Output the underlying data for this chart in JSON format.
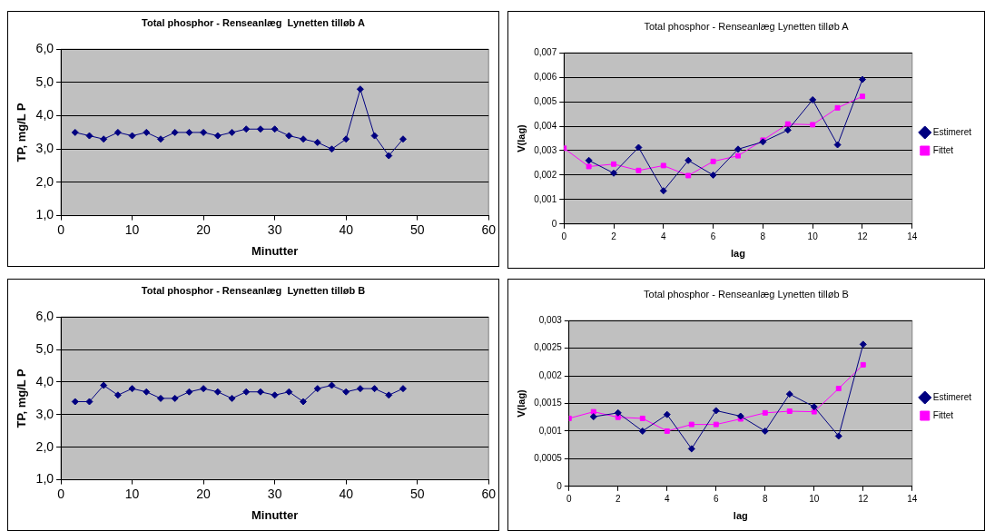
{
  "chart_data": [
    {
      "type": "line",
      "title": "Total phosphor - Renseanlæg  Lynetten tilløb A",
      "xlabel": "Minutter",
      "ylabel": "TP, mg/L P",
      "xlim": [
        0,
        60
      ],
      "xticks": [
        0,
        10,
        20,
        30,
        40,
        50,
        60
      ],
      "ylim": [
        1,
        6
      ],
      "yticks": [
        {
          "value": 1,
          "label": "1,0"
        },
        {
          "value": 2,
          "label": "2,0"
        },
        {
          "value": 3,
          "label": "3,0"
        },
        {
          "value": 4,
          "label": "4,0"
        },
        {
          "value": 5,
          "label": "5,0"
        },
        {
          "value": 6,
          "label": "6,0"
        }
      ],
      "grid": "y",
      "legend": false,
      "marker": "diamond",
      "x": [
        2,
        4,
        6,
        8,
        10,
        12,
        14,
        16,
        18,
        20,
        22,
        24,
        26,
        28,
        30,
        32,
        34,
        36,
        38,
        40,
        42,
        44,
        46,
        48
      ],
      "series": [
        {
          "color": "#000080",
          "values": [
            3.5,
            3.4,
            3.3,
            3.5,
            3.4,
            3.5,
            3.3,
            3.5,
            3.5,
            3.5,
            3.4,
            3.5,
            3.6,
            3.6,
            3.6,
            3.4,
            3.3,
            3.2,
            3.0,
            3.3,
            4.8,
            3.4,
            2.8,
            3.3
          ]
        }
      ]
    },
    {
      "type": "line",
      "title": "Total phosphor - Renseanlæg Lynetten tilløb A",
      "xlabel": "lag",
      "ylabel": "V(lag)",
      "xlim": [
        0,
        14
      ],
      "xticks": [
        0,
        2,
        4,
        6,
        8,
        10,
        12,
        14
      ],
      "ylim": [
        0,
        0.007
      ],
      "yticks": [
        0,
        {
          "value": 0.001,
          "label": "0,001"
        },
        {
          "value": 0.002,
          "label": "0,002"
        },
        {
          "value": 0.003,
          "label": "0,003"
        },
        {
          "value": 0.004,
          "label": "0,004"
        },
        {
          "value": 0.005,
          "label": "0,005"
        },
        {
          "value": 0.006,
          "label": "0,006"
        },
        {
          "value": 0.007,
          "label": "0,007"
        }
      ],
      "grid": "y",
      "legend": "right",
      "series": [
        {
          "name": "Estimeret",
          "color": "#000080",
          "marker": "diamond",
          "x": [
            1,
            2,
            3,
            4,
            5,
            6,
            7,
            8,
            9,
            10,
            11,
            12
          ],
          "values": [
            0.0026,
            0.00208,
            0.00313,
            0.00136,
            0.0026,
            0.002,
            0.00306,
            0.00336,
            0.00384,
            0.00508,
            0.00324,
            0.00591
          ]
        },
        {
          "name": "Fittet",
          "color": "#ff00ff",
          "marker": "square",
          "x": [
            0,
            1,
            2,
            3,
            4,
            5,
            6,
            7,
            8,
            9,
            10,
            11,
            12
          ],
          "values": [
            0.0031,
            0.00235,
            0.00245,
            0.00219,
            0.00239,
            0.00198,
            0.00256,
            0.00279,
            0.00343,
            0.00409,
            0.00406,
            0.00475,
            0.00522
          ]
        }
      ]
    },
    {
      "type": "line",
      "title": "Total phosphor - Renseanlæg  Lynetten tilløb B",
      "xlabel": "Minutter",
      "ylabel": "TP, mg/L P",
      "xlim": [
        0,
        60
      ],
      "xticks": [
        0,
        10,
        20,
        30,
        40,
        50,
        60
      ],
      "ylim": [
        1,
        6
      ],
      "yticks": [
        {
          "value": 1,
          "label": "1,0"
        },
        {
          "value": 2,
          "label": "2,0"
        },
        {
          "value": 3,
          "label": "3,0"
        },
        {
          "value": 4,
          "label": "4,0"
        },
        {
          "value": 5,
          "label": "5,0"
        },
        {
          "value": 6,
          "label": "6,0"
        }
      ],
      "grid": "y",
      "legend": false,
      "marker": "diamond",
      "x": [
        2,
        4,
        6,
        8,
        10,
        12,
        14,
        16,
        18,
        20,
        22,
        24,
        26,
        28,
        30,
        32,
        34,
        36,
        38,
        40,
        42,
        44,
        46,
        48
      ],
      "series": [
        {
          "color": "#000080",
          "values": [
            3.4,
            3.4,
            3.9,
            3.6,
            3.8,
            3.7,
            3.5,
            3.5,
            3.7,
            3.8,
            3.7,
            3.5,
            3.7,
            3.7,
            3.6,
            3.7,
            3.4,
            3.8,
            3.9,
            3.7,
            3.8,
            3.8,
            3.6,
            3.8
          ]
        }
      ]
    },
    {
      "type": "line",
      "title": "Total phosphor - Renseanlæg Lynetten tilløb B",
      "xlabel": "lag",
      "ylabel": "V(lag)",
      "xlim": [
        0,
        14
      ],
      "xticks": [
        0,
        2,
        4,
        6,
        8,
        10,
        12,
        14
      ],
      "ylim": [
        0,
        0.003
      ],
      "yticks": [
        0,
        {
          "value": 0.0005,
          "label": "0,0005"
        },
        {
          "value": 0.001,
          "label": "0,001"
        },
        {
          "value": 0.0015,
          "label": "0,0015"
        },
        {
          "value": 0.002,
          "label": "0,002"
        },
        {
          "value": 0.0025,
          "label": "0,0025"
        },
        {
          "value": 0.003,
          "label": "0,003"
        }
      ],
      "grid": "y",
      "legend": "right",
      "series": [
        {
          "name": "Estimeret",
          "color": "#000080",
          "marker": "diamond",
          "x": [
            1,
            2,
            3,
            4,
            5,
            6,
            7,
            8,
            9,
            10,
            11,
            12
          ],
          "values": [
            0.00126,
            0.00133,
            0.001,
            0.0013,
            0.00068,
            0.00137,
            0.00127,
            0.001,
            0.00167,
            0.00144,
            0.00091,
            0.00257
          ]
        },
        {
          "name": "Fittet",
          "color": "#ff00ff",
          "marker": "square",
          "x": [
            0,
            1,
            2,
            3,
            4,
            5,
            6,
            7,
            8,
            9,
            10,
            11,
            12
          ],
          "values": [
            0.00123,
            0.00135,
            0.00125,
            0.00123,
            0.001,
            0.00112,
            0.00112,
            0.00122,
            0.00133,
            0.00136,
            0.00135,
            0.00177,
            0.0022
          ]
        }
      ]
    }
  ]
}
